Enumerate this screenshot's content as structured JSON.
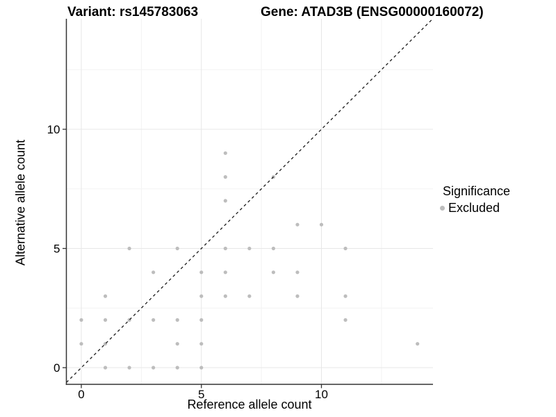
{
  "header": {
    "variant_title": "Variant: rs145783063",
    "gene_title": "Gene: ATAD3B (ENSG00000160072)"
  },
  "legend": {
    "title": "Significance",
    "items": [
      {
        "label": "Excluded",
        "color": "#bdbdbd"
      }
    ]
  },
  "colors": {
    "point": "#bdbdbd",
    "identity_line": "#1a1a1a",
    "axis_line": "#333333",
    "grid_major": "#e7e7e7",
    "grid_minor": "#f3f3f3",
    "tick_label": "#000000"
  },
  "chart_data": {
    "type": "scatter",
    "title_left": "Variant: rs145783063",
    "title_right": "Gene: ATAD3B (ENSG00000160072)",
    "xlabel": "Reference allele count",
    "ylabel": "Alternative allele count",
    "xlim": [
      -0.62,
      14.64
    ],
    "ylim": [
      -0.7,
      14.64
    ],
    "x_major_ticks": [
      0,
      5,
      10
    ],
    "y_major_ticks": [
      0,
      5,
      10
    ],
    "x_minor_gridlines": [
      2.5,
      7.5,
      12.5
    ],
    "y_minor_gridlines": [
      2.5,
      7.5,
      12.5
    ],
    "grid": true,
    "legend_position": "right",
    "diagonal_line": {
      "equation": "y = x",
      "style": "dashed",
      "from": -0.62,
      "to": 14.64
    },
    "series": [
      {
        "name": "Excluded",
        "color": "#bdbdbd",
        "points": [
          [
            0,
            1
          ],
          [
            0,
            2
          ],
          [
            1,
            0
          ],
          [
            1,
            1
          ],
          [
            1,
            2
          ],
          [
            1,
            3
          ],
          [
            2,
            0
          ],
          [
            2,
            2
          ],
          [
            2,
            5
          ],
          [
            3,
            0
          ],
          [
            3,
            2
          ],
          [
            3,
            4
          ],
          [
            4,
            0
          ],
          [
            4,
            1
          ],
          [
            4,
            2
          ],
          [
            4,
            5
          ],
          [
            5,
            0
          ],
          [
            5,
            1
          ],
          [
            5,
            2
          ],
          [
            5,
            3
          ],
          [
            5,
            4
          ],
          [
            6,
            3
          ],
          [
            6,
            4
          ],
          [
            6,
            5
          ],
          [
            6,
            7
          ],
          [
            6,
            8
          ],
          [
            6,
            9
          ],
          [
            7,
            3
          ],
          [
            7,
            5
          ],
          [
            8,
            4
          ],
          [
            8,
            5
          ],
          [
            8,
            8
          ],
          [
            9,
            3
          ],
          [
            9,
            4
          ],
          [
            9,
            6
          ],
          [
            10,
            6
          ],
          [
            11,
            2
          ],
          [
            11,
            3
          ],
          [
            11,
            5
          ],
          [
            14,
            1
          ]
        ]
      }
    ]
  }
}
